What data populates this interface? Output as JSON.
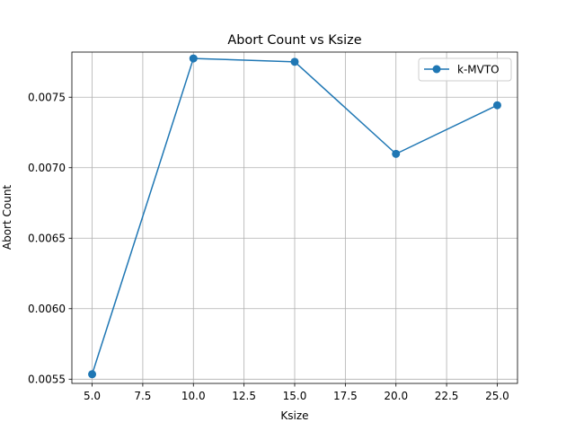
{
  "chart_data": {
    "type": "line",
    "title": "Abort Count vs Ksize",
    "xlabel": "Ksize",
    "ylabel": "Abort Count",
    "x": [
      5,
      10,
      15,
      20,
      25
    ],
    "series": [
      {
        "name": "k-MVTO",
        "values": [
          0.005535,
          0.007775,
          0.007751,
          0.007098,
          0.007443
        ],
        "color": "#1f77b4",
        "marker": "circle"
      }
    ],
    "xlim": [
      4,
      26
    ],
    "ylim": [
      0.00547,
      0.00782
    ],
    "x_ticks": [
      5.0,
      7.5,
      10.0,
      12.5,
      15.0,
      17.5,
      20.0,
      22.5,
      25.0
    ],
    "x_tick_labels": [
      "5.0",
      "7.5",
      "10.0",
      "12.5",
      "15.0",
      "17.5",
      "20.0",
      "22.5",
      "25.0"
    ],
    "y_ticks": [
      0.0055,
      0.006,
      0.0065,
      0.007,
      0.0075
    ],
    "y_tick_labels": [
      "0.0055",
      "0.0060",
      "0.0065",
      "0.0070",
      "0.0075"
    ],
    "grid": true,
    "legend_position": "top-right"
  }
}
